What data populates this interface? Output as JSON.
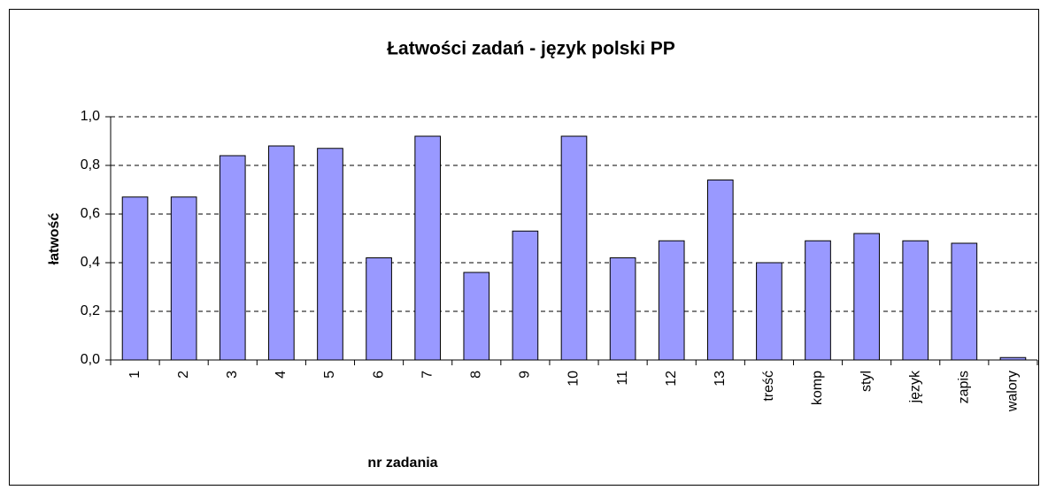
{
  "chart_data": {
    "type": "bar",
    "title": "Łatwości zadań - język polski PP",
    "x_label": "nr zadania",
    "y_label": "łatwość",
    "categories": [
      "1",
      "2",
      "3",
      "4",
      "5",
      "6",
      "7",
      "8",
      "9",
      "10",
      "11",
      "12",
      "13",
      "treść",
      "komp",
      "styl",
      "język",
      "zapis",
      "walory"
    ],
    "values": [
      0.67,
      0.67,
      0.84,
      0.88,
      0.87,
      0.42,
      0.92,
      0.36,
      0.53,
      0.92,
      0.42,
      0.49,
      0.74,
      0.4,
      0.49,
      0.52,
      0.49,
      0.48,
      0.01
    ],
    "color": "#9999ff",
    "ylim": [
      0,
      1
    ],
    "yticks": [
      {
        "value": 0,
        "label": "0,0"
      },
      {
        "value": 0.2,
        "label": "0,2"
      },
      {
        "value": 0.4,
        "label": "0,4"
      },
      {
        "value": 0.6,
        "label": "0,6"
      },
      {
        "value": 0.8,
        "label": "0,8"
      },
      {
        "value": 1,
        "label": "1,0"
      }
    ],
    "grid": true
  }
}
